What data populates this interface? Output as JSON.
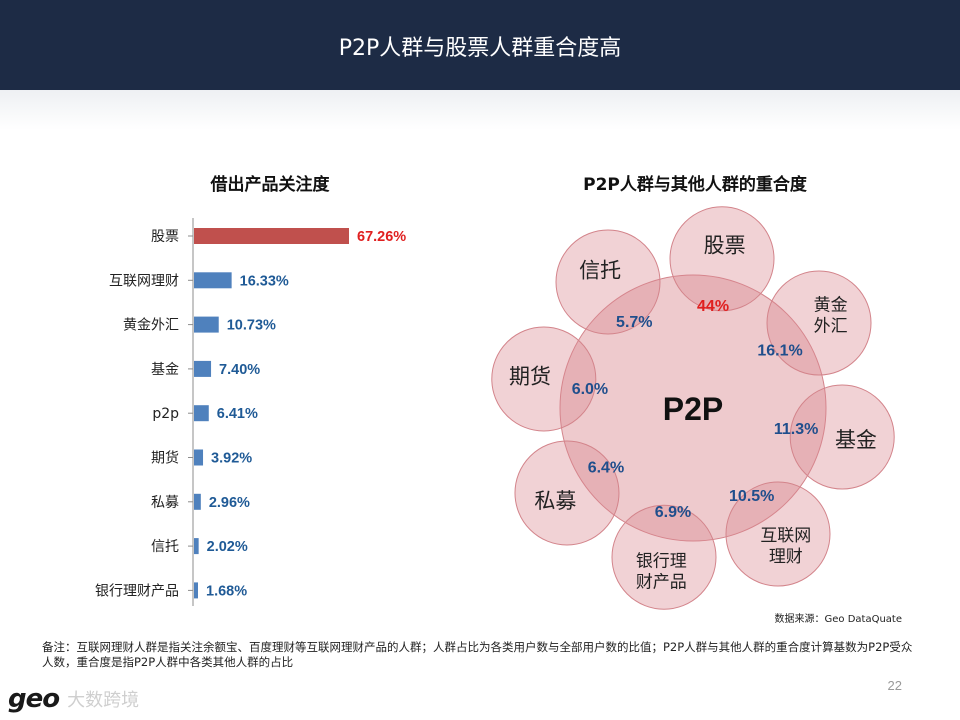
{
  "header": {
    "title": "P2P人群与股票人群重合度高"
  },
  "left_chart_title": "借出产品关注度",
  "right_chart_title": "P2P人群与其他人群的重合度",
  "colors": {
    "header_bg": "#1d2b45",
    "bar_primary": "#c0504d",
    "bar_other": "#4f81bd",
    "label_primary": "#e02020",
    "label_other": "#1f5a96",
    "bubble_fill": "#d98a90",
    "bubble_stroke": "#d3848b",
    "overlap_text": "#1f4e8c",
    "overlap_highlight": "#e02020"
  },
  "chart_data": [
    {
      "type": "bar",
      "orientation": "horizontal",
      "title": "借出产品关注度",
      "categories": [
        "股票",
        "互联网理财",
        "黄金外汇",
        "基金",
        "p2p",
        "期货",
        "私募",
        "信托",
        "银行理财产品"
      ],
      "values": [
        67.26,
        16.33,
        10.73,
        7.4,
        6.41,
        3.92,
        2.96,
        2.02,
        1.68
      ],
      "value_labels": [
        "67.26%",
        "16.33%",
        "10.73%",
        "7.40%",
        "6.41%",
        "3.92%",
        "2.96%",
        "2.02%",
        "1.68%"
      ],
      "highlight_index": 0,
      "unit": "%"
    },
    {
      "type": "bubble-overlap",
      "title": "P2P人群与其他人群的重合度",
      "center": "P2P",
      "items": [
        {
          "name": "信托",
          "value": 5.7,
          "label": "5.7%",
          "lines": [
            "信托"
          ]
        },
        {
          "name": "股票",
          "value": 44,
          "label": "44%",
          "lines": [
            "股票"
          ],
          "highlight": true
        },
        {
          "name": "黄金外汇",
          "value": 16.1,
          "label": "16.1%",
          "lines": [
            "黄金",
            "外汇"
          ]
        },
        {
          "name": "基金",
          "value": 11.3,
          "label": "11.3%",
          "lines": [
            "基金"
          ]
        },
        {
          "name": "互联网理财",
          "value": 10.5,
          "label": "10.5%",
          "lines": [
            "互联网",
            "理财"
          ]
        },
        {
          "name": "银行理财产品",
          "value": 6.9,
          "label": "6.9%",
          "lines": [
            "银行理",
            "财产品"
          ]
        },
        {
          "name": "私募",
          "value": 6.4,
          "label": "6.4%",
          "lines": [
            "私募"
          ]
        },
        {
          "name": "期货",
          "value": 6.0,
          "label": "6.0%",
          "lines": [
            "期货"
          ]
        }
      ]
    }
  ],
  "source": "数据来源：Geo DataQuate",
  "footnote": "备注：互联网理财人群是指关注余额宝、百度理财等互联网理财产品的人群；人群占比为各类用户数与全部用户数的比值；P2P人群与其他人群的重合度计算基数为P2P受众人数，重合度是指P2P人群中各类其他人群的占比",
  "page_number": "22",
  "brand": {
    "logo": "geo",
    "text": "大数跨境"
  }
}
